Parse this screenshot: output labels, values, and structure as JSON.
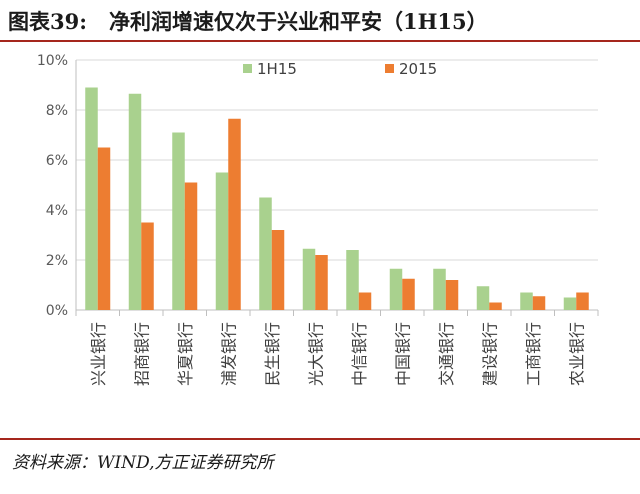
{
  "figure": {
    "number": "图表39:",
    "title": "净利润增速仅次于兴业和平安（1H15）",
    "source": "资料来源：WIND,方正证券研究所"
  },
  "chart_data": {
    "type": "bar",
    "categories": [
      "兴业银行",
      "招商银行",
      "华夏银行",
      "浦发银行",
      "民生银行",
      "光大银行",
      "中信银行",
      "中国银行",
      "交通银行",
      "建设银行",
      "工商银行",
      "农业银行"
    ],
    "series": [
      {
        "name": "1H15",
        "color": "#a9d18e",
        "values": [
          8.9,
          8.65,
          7.1,
          5.5,
          4.5,
          2.45,
          2.4,
          1.65,
          1.65,
          0.95,
          0.7,
          0.5
        ]
      },
      {
        "name": "2015",
        "color": "#ed7d31",
        "values": [
          6.5,
          3.5,
          5.1,
          7.65,
          3.2,
          2.2,
          0.7,
          1.25,
          1.2,
          0.3,
          0.55,
          0.7
        ]
      }
    ],
    "yticks": [
      "0%",
      "2%",
      "4%",
      "6%",
      "8%",
      "10%"
    ],
    "ylim": [
      0,
      10
    ],
    "grid": true,
    "legend": "top-center"
  }
}
